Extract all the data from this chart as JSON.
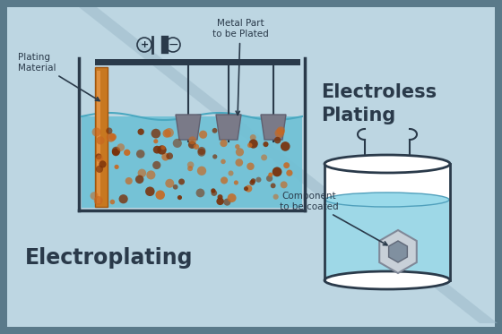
{
  "bg_dark": "#5a7a8a",
  "main_bg": "#bdd6e2",
  "text_color_dark": "#1a2a3a",
  "label_color": "#2a3a4a",
  "electroplating_label": "Electroplating",
  "electroless_label": "Electroless\nPlating",
  "plating_material_label": "Plating\nMaterial",
  "metal_part_label": "Metal Part\nto be Plated",
  "component_label": "Component\nto be coated",
  "tank_color": "#2a3a4a",
  "water_color": "#6ec0d5",
  "anode_color": "#c87820",
  "cathode_color": "#7a7a88",
  "particle_color_dark": "#7a3008",
  "particle_color_light": "#c86820",
  "wire_color": "#2a3a4a",
  "battery_color": "#2a3a4a",
  "diag_color": "#a8c8d8"
}
